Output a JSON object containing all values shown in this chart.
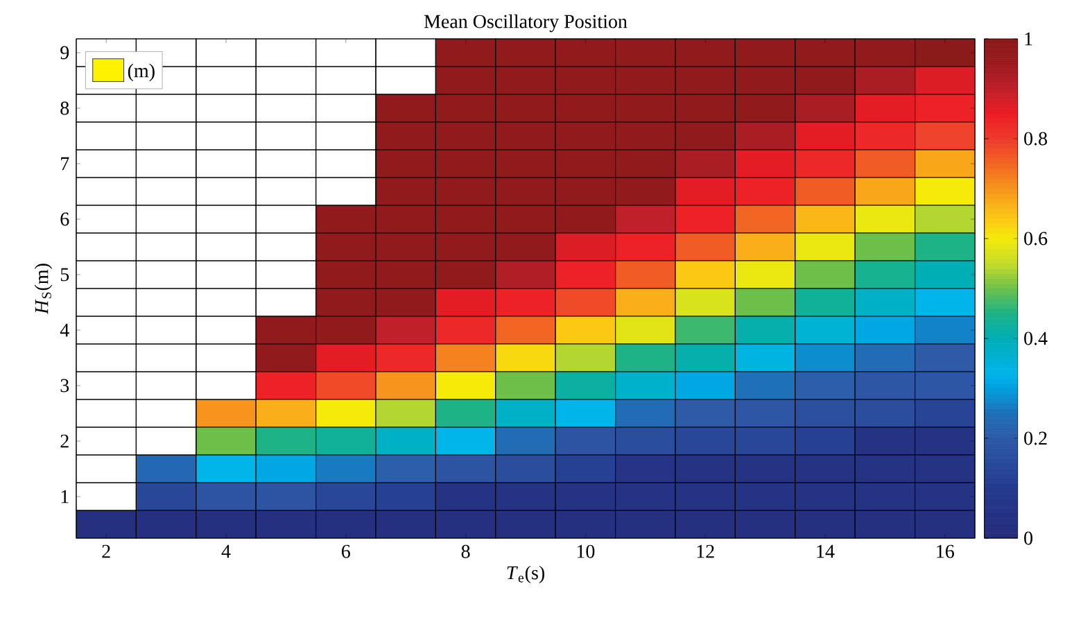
{
  "chart_data": {
    "type": "heatmap",
    "title": "Mean Oscillatory Position",
    "xlabel": "*T*$_{e}$(s)",
    "ylabel": "*H*$_{S}$(m)",
    "annotations": [
      "(m)"
    ],
    "categories": [
      "2",
      null,
      "4",
      null,
      "6",
      null,
      "8",
      null,
      "10",
      null,
      "12",
      null,
      "14",
      null,
      "16"
    ],
    "y_categories": [
      "9",
      null,
      "8",
      null,
      "7",
      null,
      "6",
      null,
      "5",
      null,
      "4",
      null,
      "3",
      null,
      "2",
      null,
      "1",
      null
    ],
    "clim": [
      0,
      1
    ],
    "cticks": [
      0,
      0.2,
      0.4,
      0.6,
      0.8,
      1
    ],
    "cells": [
      [
        null,
        null,
        null,
        null,
        null,
        null,
        0.98,
        0.98,
        0.98,
        0.98,
        0.98,
        0.98,
        0.98,
        0.98,
        1.0
      ],
      [
        null,
        null,
        null,
        null,
        null,
        null,
        0.98,
        0.98,
        0.98,
        0.98,
        0.98,
        0.98,
        0.98,
        0.93,
        0.87
      ],
      [
        null,
        null,
        null,
        null,
        null,
        0.98,
        0.98,
        0.98,
        0.98,
        0.98,
        0.98,
        0.98,
        0.93,
        0.86,
        0.84
      ],
      [
        null,
        null,
        null,
        null,
        null,
        0.98,
        0.98,
        0.98,
        0.98,
        0.98,
        0.98,
        0.93,
        0.86,
        0.83,
        0.79
      ],
      [
        null,
        null,
        null,
        null,
        null,
        0.98,
        0.98,
        0.98,
        0.98,
        0.98,
        0.93,
        0.86,
        0.83,
        0.76,
        0.68
      ],
      [
        null,
        null,
        null,
        null,
        null,
        0.98,
        0.98,
        0.98,
        0.98,
        0.98,
        0.86,
        0.84,
        0.76,
        0.68,
        0.6
      ],
      [
        null,
        null,
        null,
        null,
        0.98,
        0.98,
        0.98,
        0.98,
        0.98,
        0.9,
        0.84,
        0.75,
        0.66,
        0.59,
        0.54
      ],
      [
        null,
        null,
        null,
        null,
        0.98,
        0.98,
        0.98,
        0.98,
        0.87,
        0.84,
        0.76,
        0.67,
        0.59,
        0.5,
        0.45
      ],
      [
        null,
        null,
        null,
        null,
        0.98,
        0.98,
        0.98,
        0.92,
        0.84,
        0.76,
        0.64,
        0.59,
        0.5,
        0.44,
        0.4
      ],
      [
        null,
        null,
        null,
        null,
        0.98,
        0.98,
        0.86,
        0.84,
        0.78,
        0.67,
        0.57,
        0.5,
        0.43,
        0.38,
        0.33
      ],
      [
        null,
        null,
        null,
        0.98,
        0.98,
        0.9,
        0.83,
        0.75,
        0.64,
        0.58,
        0.47,
        0.41,
        0.36,
        0.31,
        0.27
      ],
      [
        null,
        null,
        null,
        0.98,
        0.86,
        0.83,
        0.72,
        0.62,
        0.54,
        0.45,
        0.41,
        0.34,
        0.28,
        0.24,
        0.2
      ],
      [
        null,
        null,
        null,
        0.84,
        0.78,
        0.7,
        0.6,
        0.5,
        0.42,
        0.37,
        0.31,
        0.25,
        0.21,
        0.19,
        0.19
      ],
      [
        null,
        null,
        0.7,
        0.67,
        0.6,
        0.54,
        0.45,
        0.38,
        0.33,
        0.24,
        0.2,
        0.19,
        0.17,
        0.16,
        0.13
      ],
      [
        null,
        null,
        0.5,
        0.45,
        0.43,
        0.38,
        0.33,
        0.24,
        0.18,
        0.16,
        0.14,
        0.14,
        0.12,
        0.05,
        0.05
      ],
      [
        null,
        0.23,
        0.33,
        0.31,
        0.26,
        0.21,
        0.18,
        0.16,
        0.12,
        0.06,
        0.05,
        0.05,
        0.05,
        0.05,
        0.05
      ],
      [
        null,
        0.14,
        0.18,
        0.18,
        0.14,
        0.12,
        0.05,
        0.05,
        0.05,
        0.05,
        0.05,
        0.05,
        0.05,
        0.05,
        0.05
      ],
      [
        0.03,
        0.03,
        0.03,
        0.03,
        0.03,
        0.03,
        0.03,
        0.03,
        0.03,
        0.03,
        0.03,
        0.03,
        0.03,
        0.03,
        0.03
      ]
    ]
  }
}
